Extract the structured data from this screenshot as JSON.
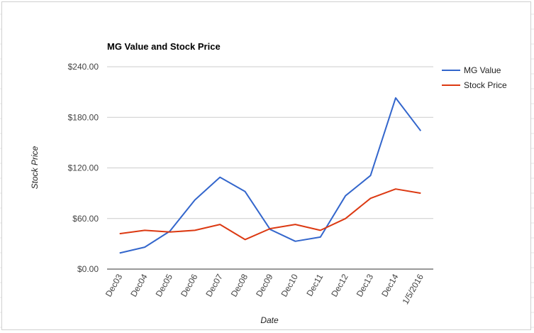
{
  "chart_data": {
    "type": "line",
    "title": "MG Value and Stock Price",
    "xlabel": "Date",
    "ylabel": "Stock Price",
    "categories": [
      "Dec03",
      "Dec04",
      "Dec05",
      "Dec06",
      "Dec07",
      "Dec08",
      "Dec09",
      "Dec10",
      "Dec11",
      "Dec12",
      "Dec13",
      "Dec14",
      "1/5/2016"
    ],
    "series": [
      {
        "name": "MG Value",
        "color": "#3366cc",
        "values": [
          19,
          26,
          45,
          82,
          109,
          92,
          47,
          33,
          38,
          87,
          111,
          203,
          164
        ]
      },
      {
        "name": "Stock Price",
        "color": "#dc3912",
        "values": [
          42,
          46,
          44,
          46,
          53,
          35,
          48,
          53,
          46,
          60,
          84,
          95,
          90
        ]
      }
    ],
    "ylim": [
      0,
      240
    ],
    "yticks": [
      {
        "value": 0,
        "label": "$0.00"
      },
      {
        "value": 60,
        "label": "$60.00"
      },
      {
        "value": 120,
        "label": "$120.00"
      },
      {
        "value": 180,
        "label": "$180.00"
      },
      {
        "value": 240,
        "label": "$240.00"
      }
    ],
    "grid": true,
    "legend": "right"
  }
}
